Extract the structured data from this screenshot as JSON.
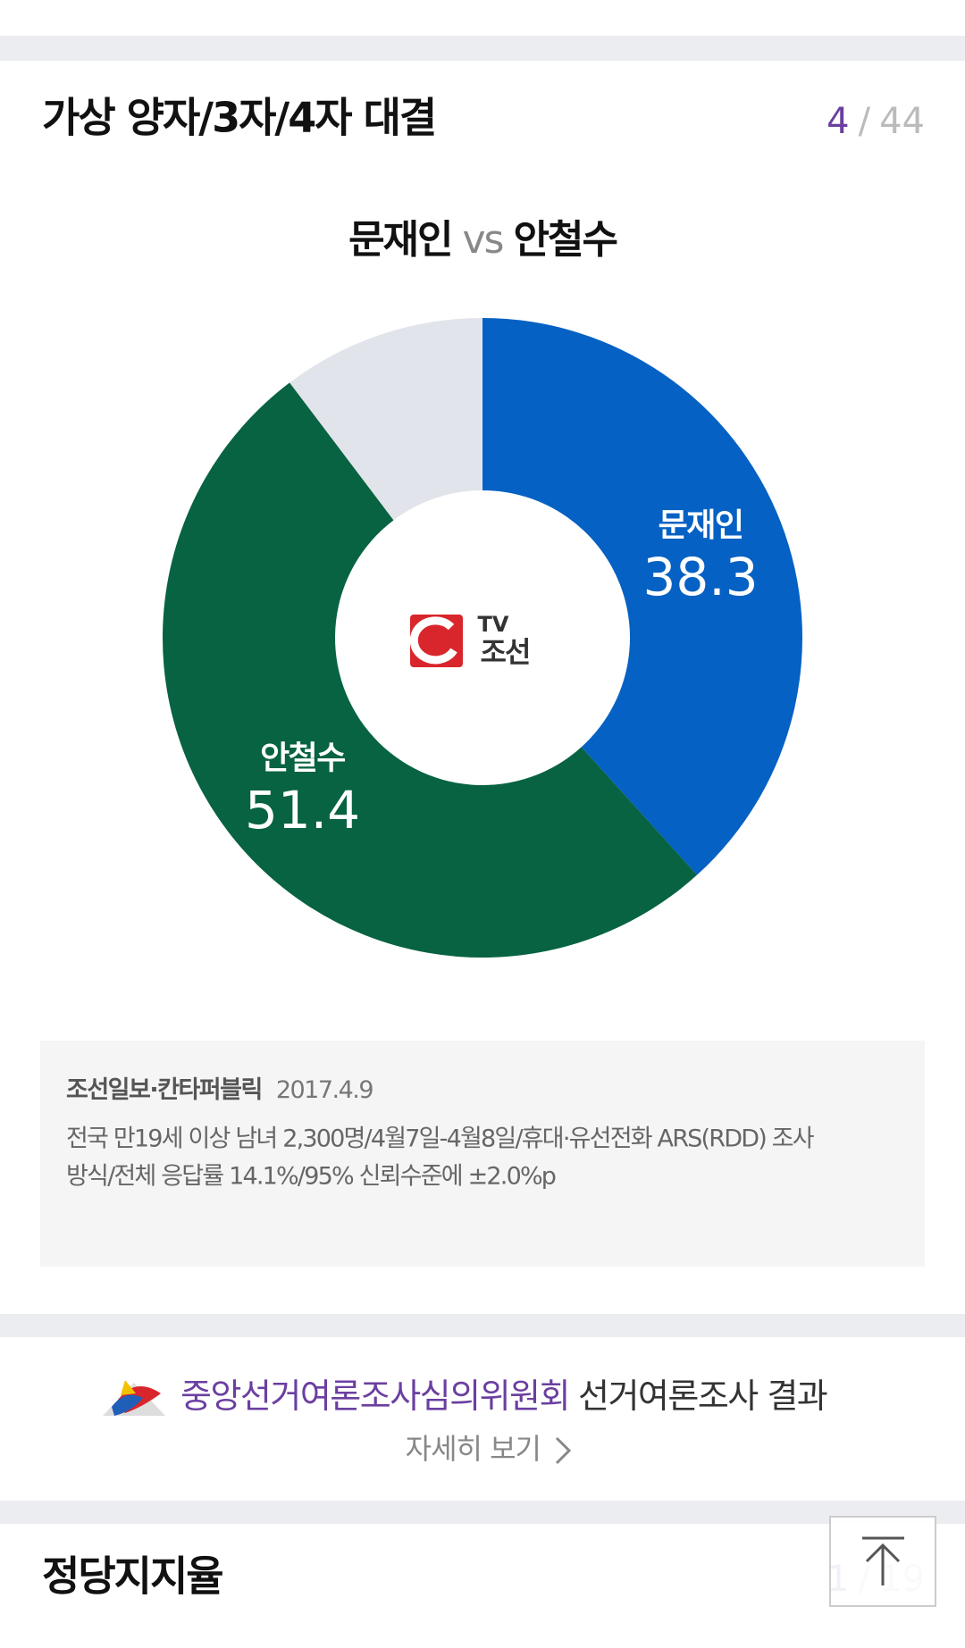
{
  "header": {
    "title": "가상 양자/3자/4자 대결",
    "page_current": "4",
    "page_sep": "/",
    "page_total": "44"
  },
  "chart_data": {
    "type": "donut",
    "title": {
      "left": "문재인",
      "sep": "vs",
      "right": "안철수"
    },
    "categories": [
      "문재인",
      "안철수",
      null
    ],
    "values": [
      38.3,
      51.4,
      10.3
    ],
    "colors": [
      "#0561c3",
      "#076341",
      "#e1e4ea"
    ],
    "start_angle": 0,
    "direction": "clockwise"
  },
  "logo": {
    "top": "TV",
    "bottom": "조선"
  },
  "source": {
    "org": "조선일보·칸타퍼블릭",
    "date": "2017.4.9",
    "lines": [
      "전국 만19세 이상 남녀 2,300명/4월7일-4월8일/휴대·유선전화 ARS(RDD) 조사",
      "방식/전체 응답률 14.1%/95% 신뢰수준에 ±2.0%p"
    ]
  },
  "nec": {
    "org": "중앙선거여론조사심의위원회",
    "suffix": "선거여론조사 결과",
    "link": "자세히 보기"
  },
  "next": {
    "title": "정당지지율",
    "page_current": "1",
    "page_sep": "/",
    "page_total": "19"
  }
}
